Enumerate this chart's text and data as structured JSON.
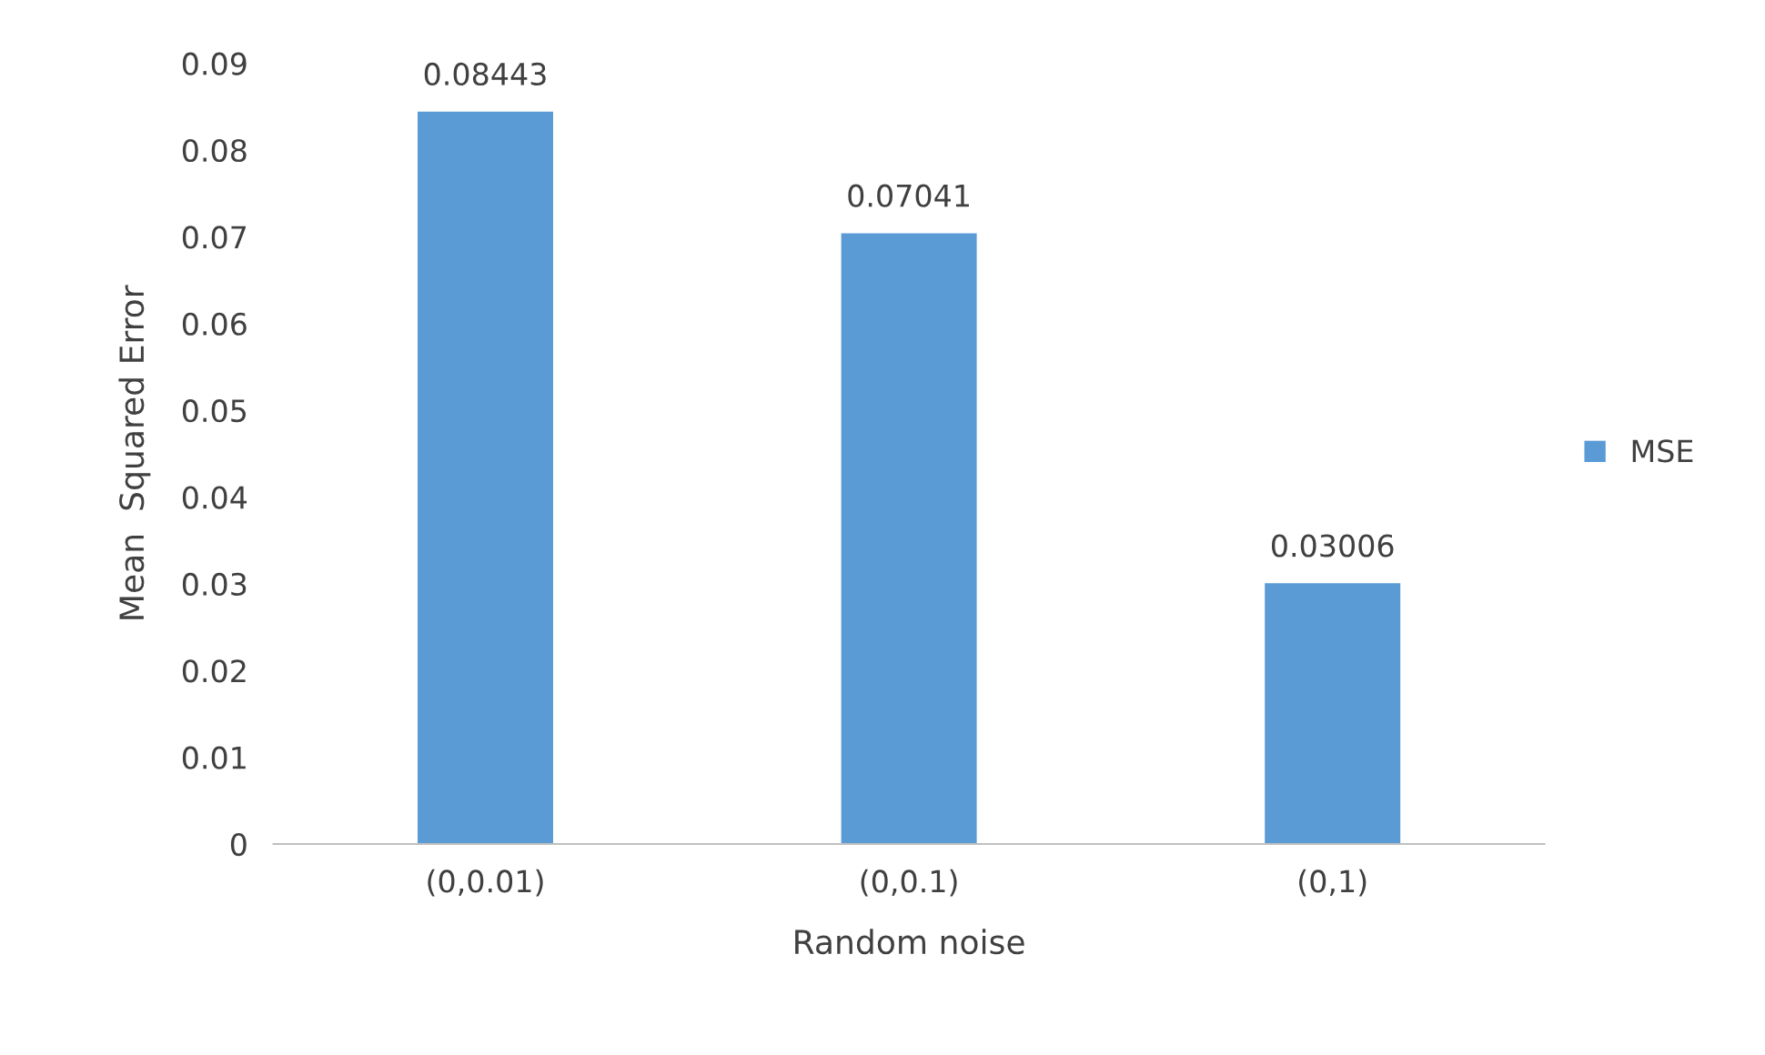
{
  "chart_data": {
    "type": "bar",
    "xlabel": "Random noise",
    "ylabel": "Mean  Squared Error",
    "categories": [
      "(0,0.01)",
      "(0,0.1)",
      "(0,1)"
    ],
    "series": [
      {
        "name": "MSE",
        "color": "#5b9bd5",
        "values": [
          0.08443,
          0.07041,
          0.03006
        ]
      }
    ],
    "ylim": [
      0,
      0.09
    ],
    "yticks": [
      0,
      0.01,
      0.02,
      0.03,
      0.04,
      0.05,
      0.06,
      0.07,
      0.08,
      0.09
    ],
    "data_labels": true,
    "grid": false,
    "legend": "right"
  }
}
